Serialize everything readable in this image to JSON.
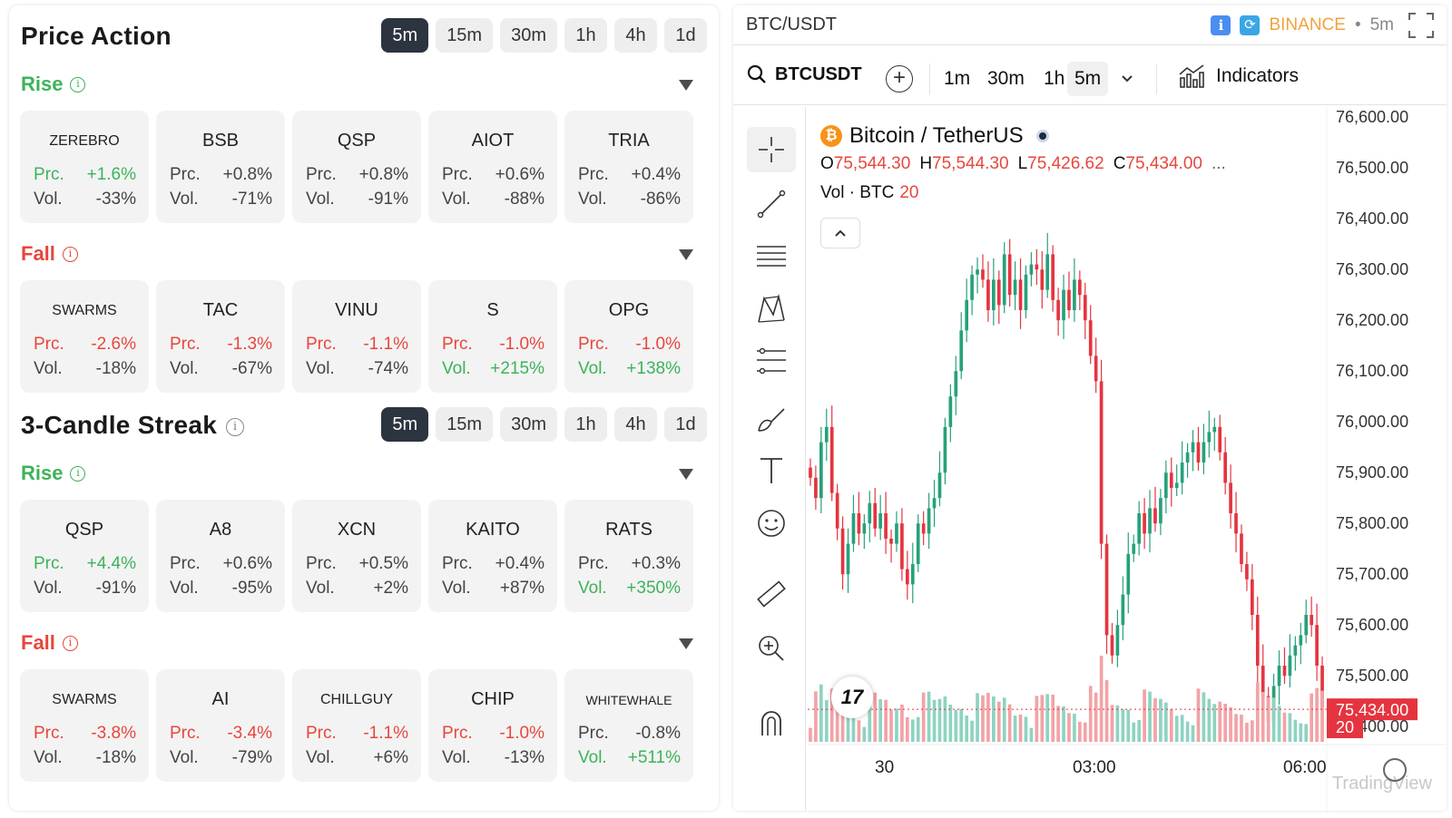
{
  "price_action": {
    "title": "Price Action",
    "timeframes": [
      "5m",
      "15m",
      "30m",
      "1h",
      "4h",
      "1d"
    ],
    "active_timeframe": "5m",
    "rise_label": "Rise",
    "fall_label": "Fall",
    "rise": [
      {
        "symbol": "ZEREBRO",
        "prc": "+1.6%",
        "vol": "-33%",
        "prc_pos": true,
        "vol_pos": false
      },
      {
        "symbol": "BSB",
        "prc": "+0.8%",
        "vol": "-71%",
        "prc_pos": false,
        "vol_pos": false
      },
      {
        "symbol": "QSP",
        "prc": "+0.8%",
        "vol": "-91%",
        "prc_pos": false,
        "vol_pos": false
      },
      {
        "symbol": "AIOT",
        "prc": "+0.6%",
        "vol": "-88%",
        "prc_pos": false,
        "vol_pos": false
      },
      {
        "symbol": "TRIA",
        "prc": "+0.4%",
        "vol": "-86%",
        "prc_pos": false,
        "vol_pos": false
      }
    ],
    "fall": [
      {
        "symbol": "SWARMS",
        "prc": "-2.6%",
        "vol": "-18%",
        "prc_neg": true,
        "vol_pos": false
      },
      {
        "symbol": "TAC",
        "prc": "-1.3%",
        "vol": "-67%",
        "prc_neg": true,
        "vol_pos": false
      },
      {
        "symbol": "VINU",
        "prc": "-1.1%",
        "vol": "-74%",
        "prc_neg": true,
        "vol_pos": false
      },
      {
        "symbol": "S",
        "prc": "-1.0%",
        "vol": "+215%",
        "prc_neg": true,
        "vol_pos": true
      },
      {
        "symbol": "OPG",
        "prc": "-1.0%",
        "vol": "+138%",
        "prc_neg": true,
        "vol_pos": true
      }
    ]
  },
  "candle_streak": {
    "title": "3-Candle Streak",
    "timeframes": [
      "5m",
      "15m",
      "30m",
      "1h",
      "4h",
      "1d"
    ],
    "active_timeframe": "5m",
    "rise_label": "Rise",
    "fall_label": "Fall",
    "rise": [
      {
        "symbol": "QSP",
        "prc": "+4.4%",
        "vol": "-91%",
        "prc_pos": true,
        "vol_pos": false
      },
      {
        "symbol": "A8",
        "prc": "+0.6%",
        "vol": "-95%",
        "prc_pos": false,
        "vol_pos": false
      },
      {
        "symbol": "XCN",
        "prc": "+0.5%",
        "vol": "+2%",
        "prc_pos": false,
        "vol_pos": false
      },
      {
        "symbol": "KAITO",
        "prc": "+0.4%",
        "vol": "+87%",
        "prc_pos": false,
        "vol_pos": false
      },
      {
        "symbol": "RATS",
        "prc": "+0.3%",
        "vol": "+350%",
        "prc_pos": false,
        "vol_pos": true
      }
    ],
    "fall": [
      {
        "symbol": "SWARMS",
        "prc": "-3.8%",
        "vol": "-18%",
        "prc_neg": true,
        "vol_pos": false
      },
      {
        "symbol": "AI",
        "prc": "-3.4%",
        "vol": "-79%",
        "prc_neg": true,
        "vol_pos": false
      },
      {
        "symbol": "CHILLGUY",
        "prc": "-1.1%",
        "vol": "+6%",
        "prc_neg": true,
        "vol_pos": false
      },
      {
        "symbol": "CHIP",
        "prc": "-1.0%",
        "vol": "-13%",
        "prc_neg": true,
        "vol_pos": false
      },
      {
        "symbol": "WHITEWHALE",
        "prc": "-0.8%",
        "vol": "+511%",
        "prc_neg": false,
        "vol_pos": true
      }
    ]
  },
  "card_labels": {
    "prc": "Prc.",
    "vol": "Vol."
  },
  "chart_widget": {
    "pair_title": "BTC/USDT",
    "exchange": "BINANCE",
    "separator": "•",
    "timeframe": "5m",
    "symbol_search": "BTCUSDT",
    "toolbar_timeframes": [
      "1m",
      "30m",
      "1h",
      "5m"
    ],
    "active_toolbar_timeframe": "5m",
    "indicators_label": "Indicators",
    "legend_title": "Bitcoin / TetherUS",
    "ohlc": {
      "o_label": "O",
      "o": "75,544.30",
      "h_label": "H",
      "h": "75,544.30",
      "l_label": "L",
      "l": "75,426.62",
      "c_label": "C",
      "c": "75,434.00",
      "more": "..."
    },
    "vol_label": "Vol · BTC",
    "vol_value": "20",
    "current_price_tag": "75,434.00",
    "current_volume_tag": "20",
    "watermark": "TradingView",
    "tv_logo": "17",
    "colors": {
      "up": "#26a17b",
      "down": "#e5343f",
      "vol_up": "#8ed3c1",
      "vol_down": "#f2a3a6"
    }
  },
  "chart_data": {
    "type": "candlestick",
    "price_axis_ticks": [
      "76,600.00",
      "76,500.00",
      "76,400.00",
      "76,300.00",
      "76,200.00",
      "76,100.00",
      "76,000.00",
      "75,900.00",
      "75,800.00",
      "75,700.00",
      "75,600.00",
      "75,500.00",
      "75,400.00"
    ],
    "time_axis_ticks": [
      "30",
      "03:00",
      "06:00"
    ],
    "ylim": [
      75370,
      76620
    ],
    "close_series": [
      75890,
      75850,
      75960,
      75990,
      75860,
      75790,
      75700,
      75760,
      75820,
      75780,
      75800,
      75840,
      75790,
      75820,
      75770,
      75760,
      75800,
      75710,
      75680,
      75720,
      75800,
      75780,
      75830,
      75850,
      75900,
      75990,
      76050,
      76100,
      76180,
      76240,
      76290,
      76300,
      76280,
      76220,
      76280,
      76230,
      76330,
      76250,
      76280,
      76220,
      76290,
      76310,
      76300,
      76260,
      76330,
      76240,
      76200,
      76260,
      76220,
      76280,
      76250,
      76200,
      76130,
      76080,
      75760,
      75580,
      75540,
      75600,
      75660,
      75740,
      75760,
      75820,
      75780,
      75830,
      75800,
      75850,
      75900,
      75870,
      75880,
      75920,
      75940,
      75960,
      75920,
      75960,
      75980,
      75990,
      75940,
      75880,
      75820,
      75780,
      75720,
      75690,
      75620,
      75520,
      75460,
      75410,
      75480,
      75520,
      75500,
      75540,
      75560,
      75580,
      75620,
      75600,
      75520,
      75434
    ]
  }
}
